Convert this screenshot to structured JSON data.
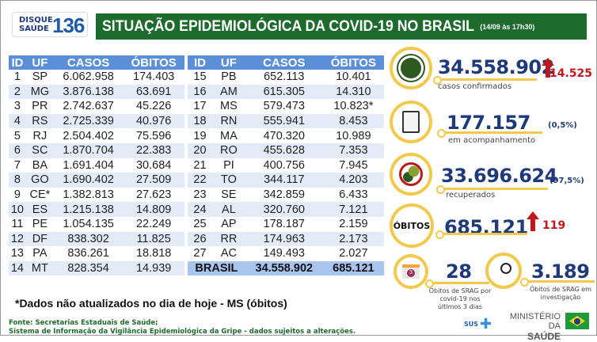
{
  "header": {
    "logo_text": "DISQUE SAÚDE",
    "logo_number": "136",
    "title": "SITUAÇÃO EPIDEMIOLÓGICA DA COVID-19 NO BRASIL",
    "date": "(14/09 às 17h30)"
  },
  "table": {
    "columns": [
      "ID",
      "UF",
      "CASOS",
      "ÓBITOS"
    ],
    "left_rows": [
      [
        "1",
        "SP",
        "6.062.958",
        "174.403"
      ],
      [
        "2",
        "MG",
        "3.876.138",
        "63.691"
      ],
      [
        "3",
        "PR",
        "2.742.637",
        "45.226"
      ],
      [
        "4",
        "RS",
        "2.725.339",
        "40.976"
      ],
      [
        "5",
        "RJ",
        "2.504.402",
        "75.596"
      ],
      [
        "6",
        "SC",
        "1.870.704",
        "22.383"
      ],
      [
        "7",
        "BA",
        "1.691.404",
        "30.684"
      ],
      [
        "8",
        "GO",
        "1.690.402",
        "27.509"
      ],
      [
        "9",
        "CE*",
        "1.382.813",
        "27.623"
      ],
      [
        "10",
        "ES",
        "1.215.138",
        "14.809"
      ],
      [
        "11",
        "PE",
        "1.054.135",
        "22.249"
      ],
      [
        "12",
        "DF",
        "838.302",
        "11.825"
      ],
      [
        "13",
        "PA",
        "836.261",
        "18.818"
      ],
      [
        "14",
        "MT",
        "828.354",
        "14.939"
      ]
    ],
    "right_rows": [
      [
        "15",
        "PB",
        "652.113",
        "10.401"
      ],
      [
        "16",
        "AM",
        "615.305",
        "14.310"
      ],
      [
        "17",
        "MS",
        "579.473",
        "10.823*"
      ],
      [
        "18",
        "RN",
        "555.941",
        "8.453"
      ],
      [
        "19",
        "MA",
        "470.320",
        "10.989"
      ],
      [
        "20",
        "RO",
        "455.628",
        "7.353"
      ],
      [
        "21",
        "PI",
        "400.756",
        "7.945"
      ],
      [
        "22",
        "TO",
        "344.117",
        "4.203"
      ],
      [
        "23",
        "SE",
        "342.859",
        "6.433"
      ],
      [
        "24",
        "AL",
        "320.760",
        "7.121"
      ],
      [
        "25",
        "AP",
        "178.187",
        "2.159"
      ],
      [
        "26",
        "RR",
        "174.963",
        "2.173"
      ],
      [
        "27",
        "AC",
        "149.493",
        "2.027"
      ]
    ],
    "total": {
      "label": "BRASIL",
      "casos": "34.558.902",
      "obitos": "685.121"
    }
  },
  "footnote": "*Dados não atualizados no dia de hoje - MS (óbitos)",
  "source": [
    "Fonte: Secretarias Estaduais de Saúde;",
    "Sistema de Informação da Vigilância Epidemiológica da Gripe - dados sujeitos a alterações."
  ],
  "stats": {
    "confirmados": {
      "value": "34.558.902",
      "increase": "14.525",
      "caption": "casos confirmados"
    },
    "acompanhamento": {
      "value": "177.157",
      "pct": "(0,5%)",
      "caption": "em acompanhamento"
    },
    "recuperados": {
      "value": "33.696.624",
      "pct": "(97,5%)",
      "caption": "recuperados"
    },
    "obitos": {
      "label": "ÓBITOS",
      "value": "685.121",
      "increase": "119"
    },
    "srag3": {
      "value": "28",
      "calendar": "3",
      "caption": "Óbitos de SRAG por covid-19 nos últimos 3 dias"
    },
    "investigacao": {
      "value": "3.189",
      "caption": "Óbitos de SRAG em investigação"
    }
  },
  "footer": {
    "sus": "SUS",
    "ministry": "MINISTÉRIO DA",
    "ministry2": "SAÚDE"
  },
  "colors": {
    "green": "#1e6b2e",
    "blue_header": "#5b8fd8",
    "navy": "#1f3a7a",
    "yellow": "#f2c94c",
    "red": "#c0161c"
  }
}
